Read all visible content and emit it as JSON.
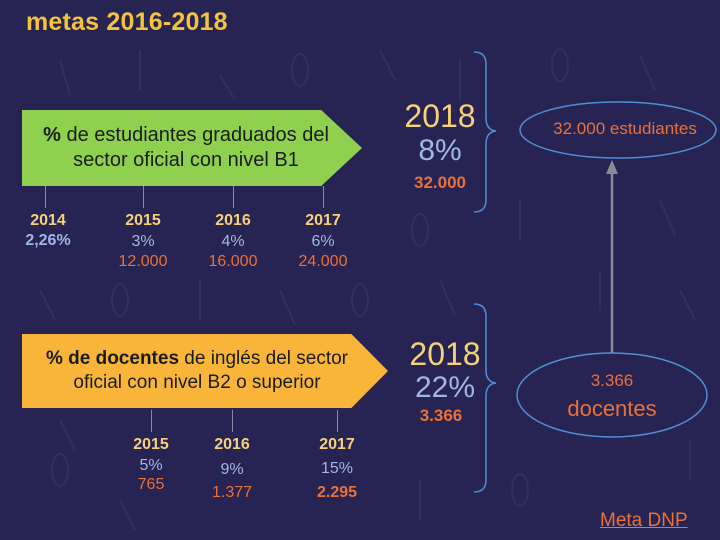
{
  "title": "metas 2016-2018",
  "indicator1": {
    "label_bold": "%",
    "label_rest": " de estudiantes graduados del sector oficial con nivel B1",
    "goal_year": "2018",
    "goal_pct": "8%",
    "goal_count": "32.000",
    "years": [
      {
        "year": "2014",
        "pct": "2,26%",
        "count": ""
      },
      {
        "year": "2015",
        "pct": "3%",
        "count": "12.000"
      },
      {
        "year": "2016",
        "pct": "4%",
        "count": "16.000"
      },
      {
        "year": "2017",
        "pct": "6%",
        "count": "24.000"
      }
    ]
  },
  "indicator2": {
    "label_bold": "% de docentes",
    "label_rest": " de inglés del sector oficial con nivel B2 o superior",
    "goal_year": "2018",
    "goal_pct": "22%",
    "goal_count": "3.366",
    "years": [
      {
        "year": "2015",
        "pct": "5%",
        "count": "765"
      },
      {
        "year": "2016",
        "pct": "9%",
        "count": "1.377"
      },
      {
        "year": "2017",
        "pct": "15%",
        "count": "2.295"
      }
    ]
  },
  "oval_students": {
    "text": "32.000 estudiantes"
  },
  "oval_teachers": {
    "line1": "3.366",
    "line2": "docentes"
  },
  "footer_link": "Meta DNP",
  "colors": {
    "background": "#272352",
    "title": "#f5c33b",
    "green_box": "#8fd14f",
    "yellow_box": "#f9b43a",
    "percent": "#9fb7e8",
    "count": "#e9713b",
    "year": "#f5d17a"
  }
}
